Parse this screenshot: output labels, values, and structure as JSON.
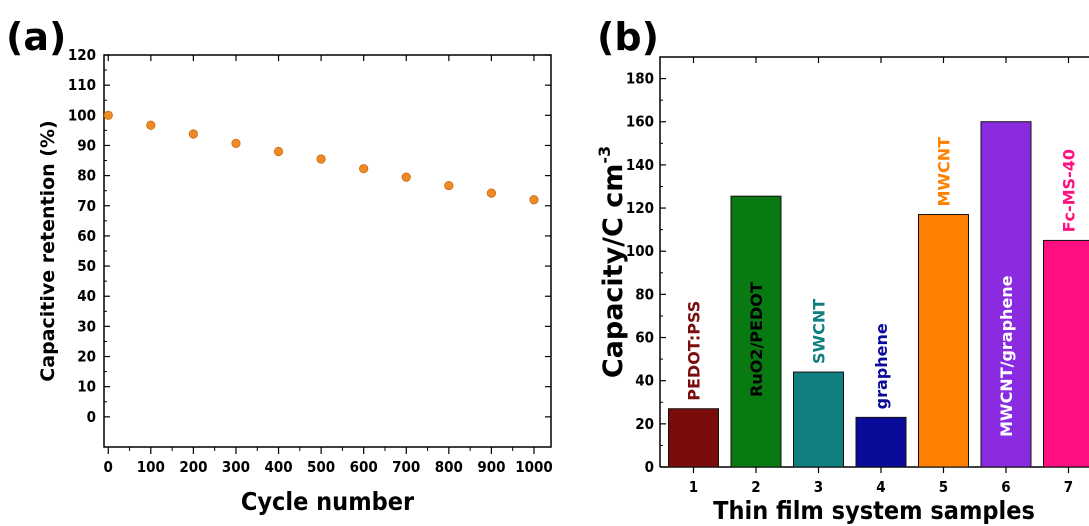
{
  "chart_data": [
    {
      "type": "scatter",
      "panel_label": "(a)",
      "xlabel": "Cycle number",
      "ylabel": "Capacitive retention (%)",
      "xlim": [
        -10,
        1040
      ],
      "ylim": [
        -10,
        120
      ],
      "xticks": [
        0,
        100,
        200,
        300,
        400,
        500,
        600,
        700,
        800,
        900,
        1000
      ],
      "yticks": [
        0,
        10,
        20,
        30,
        40,
        50,
        60,
        70,
        80,
        90,
        100,
        110,
        120
      ],
      "marker_color": "#f08a24",
      "x": [
        0,
        100,
        200,
        300,
        400,
        500,
        600,
        700,
        800,
        900,
        1000
      ],
      "y": [
        100,
        96.7,
        93.8,
        90.7,
        88,
        85.5,
        82.3,
        79.5,
        76.7,
        74.2,
        72
      ]
    },
    {
      "type": "bar",
      "panel_label": "(b)",
      "xlabel": "Thin film system samples",
      "ylabel": "Capacity/C cm",
      "ylabel_superscript": "-3",
      "ylim": [
        0,
        190
      ],
      "yticks": [
        0,
        20,
        40,
        60,
        80,
        100,
        120,
        140,
        160,
        180
      ],
      "categories": [
        "1",
        "2",
        "3",
        "4",
        "5",
        "6",
        "7"
      ],
      "values": [
        27,
        125.5,
        44,
        23,
        117,
        160,
        105
      ],
      "bar_labels": [
        "PEDOT:PSS",
        "RuO2/PEDOT",
        "SWCNT",
        "graphene",
        "MWCNT",
        "MWCNT/graphene",
        "Fc-MS-40"
      ],
      "bar_colors": [
        "#7a0c0c",
        "#097a12",
        "#0f7f7f",
        "#0b0b9a",
        "#ff8000",
        "#8a2be2",
        "#ff1080"
      ],
      "label_colors": [
        "#7a0c0c",
        "#000000",
        "#0f7f7f",
        "#0b0b9a",
        "#ff8000",
        "#ffffff",
        "#ff1080"
      ],
      "label_inside": [
        false,
        true,
        false,
        false,
        false,
        true,
        false
      ]
    }
  ]
}
